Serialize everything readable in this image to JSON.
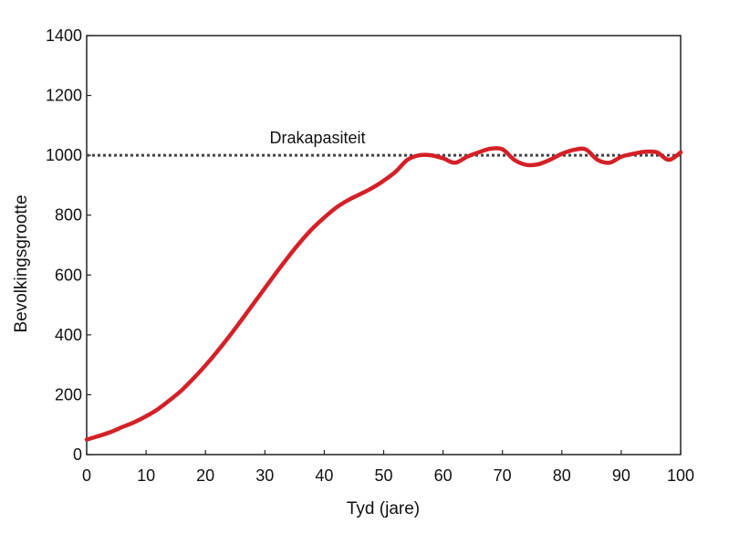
{
  "chart_data": {
    "type": "line",
    "title": "",
    "xlabel": "Tyd (jare)",
    "ylabel": "Bevolkingsgrootte",
    "xlim": [
      0,
      100
    ],
    "ylim": [
      0,
      1400
    ],
    "xticks": [
      0,
      10,
      20,
      30,
      40,
      50,
      60,
      70,
      80,
      90,
      100
    ],
    "yticks": [
      0,
      200,
      400,
      600,
      800,
      1000,
      1200,
      1400
    ],
    "grid": false,
    "legend": "none",
    "reference_line": {
      "y": 1000,
      "label": "Drakapasiteit",
      "style": "dotted"
    },
    "series": [
      {
        "color": "#d42027",
        "x": [
          0,
          2,
          4,
          6,
          8,
          10,
          12,
          14,
          16,
          18,
          20,
          22,
          24,
          26,
          28,
          30,
          32,
          34,
          36,
          38,
          40,
          42,
          44,
          46,
          48,
          50,
          52,
          54,
          56,
          58,
          60,
          62,
          64,
          66,
          68,
          70,
          72,
          74,
          76,
          78,
          80,
          82,
          84,
          86,
          88,
          90,
          92,
          94,
          96,
          98,
          100
        ],
        "y": [
          50,
          62,
          75,
          92,
          108,
          128,
          152,
          182,
          215,
          255,
          298,
          345,
          395,
          448,
          502,
          556,
          610,
          662,
          711,
          755,
          792,
          825,
          850,
          870,
          890,
          915,
          945,
          985,
          1000,
          1000,
          990,
          975,
          995,
          1010,
          1022,
          1020,
          985,
          968,
          970,
          985,
          1005,
          1018,
          1020,
          985,
          975,
          995,
          1005,
          1012,
          1010,
          985,
          1010
        ]
      }
    ]
  }
}
